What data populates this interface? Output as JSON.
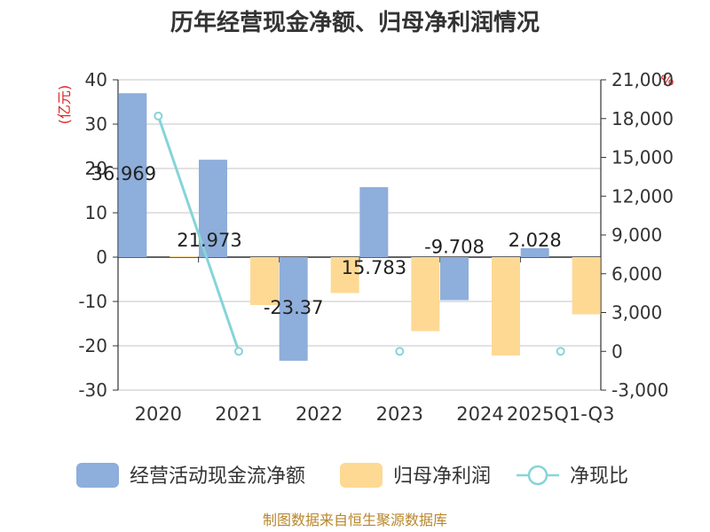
{
  "chart_data": {
    "type": "bar",
    "title": "历年经营现金净额、归母净利润情况",
    "categories": [
      "2020",
      "2021",
      "2022",
      "2023",
      "2024",
      "2025Q1-Q3"
    ],
    "series": [
      {
        "name": "经营活动现金流净额",
        "type": "bar",
        "axis": "left",
        "color": "#8eaedb",
        "values": [
          36.969,
          21.973,
          -23.37,
          15.783,
          -9.708,
          2.028
        ],
        "labels": [
          "36.969",
          "21.973",
          "-23.37",
          "15.783",
          "-9.708",
          "2.028"
        ]
      },
      {
        "name": "归母净利润",
        "type": "bar",
        "axis": "left",
        "color": "#fdd994",
        "values": [
          0.2,
          -10.8,
          -8.1,
          -16.7,
          -22.2,
          -12.9
        ]
      },
      {
        "name": "净现比",
        "type": "line",
        "axis": "right",
        "color": "#86d4d8",
        "values": [
          18200,
          0,
          null,
          0,
          null,
          0
        ]
      }
    ],
    "y_left": {
      "unit_label": "(亿元)",
      "min": -30,
      "max": 40,
      "ticks": [
        40,
        30,
        20,
        10,
        0,
        -10,
        -20,
        -30
      ],
      "tick_labels": [
        "40",
        "30",
        "20",
        "10",
        "0",
        "-10",
        "-20",
        "-30"
      ]
    },
    "y_right": {
      "unit_label": "%",
      "min": -3000,
      "max": 21000,
      "ticks": [
        21000,
        18000,
        15000,
        12000,
        9000,
        6000,
        3000,
        0,
        -3000
      ],
      "tick_labels": [
        "21,000",
        "18,000",
        "15,000",
        "12,000",
        "9,000",
        "6,000",
        "3,000",
        "0",
        "-3,000"
      ]
    },
    "legend": [
      "经营活动现金流净额",
      "归母净利润",
      "净现比"
    ],
    "source": "制图数据来自恒生聚源数据库"
  }
}
